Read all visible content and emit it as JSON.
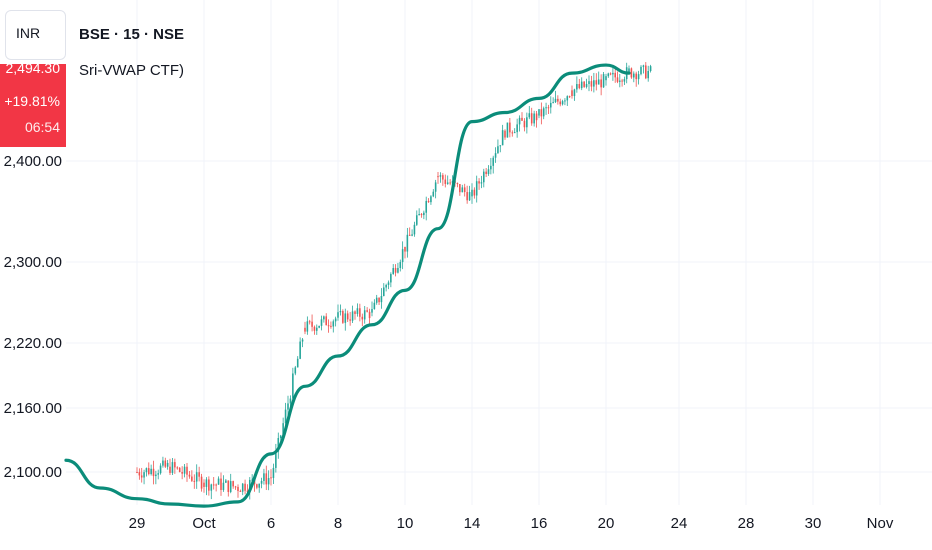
{
  "header": {
    "currency": "INR",
    "symbol_line": "BSE · 15 · NSE",
    "indicator": "Sri-VWAP CTF)"
  },
  "price_tag": {
    "price": "2,494.30",
    "change": "+19.81%",
    "timer": "06:54",
    "color": "#f23645"
  },
  "colors": {
    "vwap": "#0b8c7a",
    "candle_up": "#26a69a",
    "candle_down": "#ef5350",
    "grid": "#f0f3fa",
    "axis_text": "#131722"
  },
  "chart_data": {
    "type": "line",
    "title": "",
    "xlabel": "",
    "ylabel": "",
    "x_tick_labels": [
      "29",
      "Oct",
      "6",
      "8",
      "10",
      "14",
      "16",
      "20",
      "24",
      "28",
      "30",
      "Nov"
    ],
    "y_tick_labels": [
      "2,100.00",
      "2,160.00",
      "2,220.00",
      "2,300.00",
      "2,400.00"
    ],
    "y_tick_values": [
      2100,
      2160,
      2220,
      2300,
      2400
    ],
    "ylim": [
      2085,
      2505
    ],
    "grid": true,
    "legend": "none",
    "series": [
      {
        "kind": "vwap_line",
        "x": [
          "Sep 25",
          "Sep 26",
          "Sep 29",
          "Sep 30",
          "Oct 1",
          "Oct 3",
          "Oct 6",
          "Oct 7",
          "Oct 8",
          "Oct 9",
          "Oct 10",
          "Oct 13",
          "Oct 14",
          "Oct 15",
          "Oct 16",
          "Oct 17",
          "Oct 20",
          "Oct 21"
        ],
        "values": [
          2111,
          2085,
          2075,
          2070,
          2068,
          2072,
          2117,
          2180,
          2208,
          2238,
          2272,
          2333,
          2439,
          2448,
          2462,
          2487,
          2495,
          2487
        ]
      },
      {
        "kind": "price_candles",
        "x": [
          "Sep 29",
          "Sep 30",
          "Oct 1",
          "Oct 3",
          "Oct 6",
          "Oct 7",
          "Oct 8",
          "Oct 9",
          "Oct 10",
          "Oct 13",
          "Oct 14",
          "Oct 15",
          "Oct 16",
          "Oct 17",
          "Oct 20",
          "Oct 21"
        ],
        "values": [
          2100,
          2105,
          2090,
          2086,
          2095,
          2235,
          2245,
          2250,
          2315,
          2385,
          2365,
          2430,
          2445,
          2470,
          2480,
          2488
        ]
      }
    ]
  }
}
